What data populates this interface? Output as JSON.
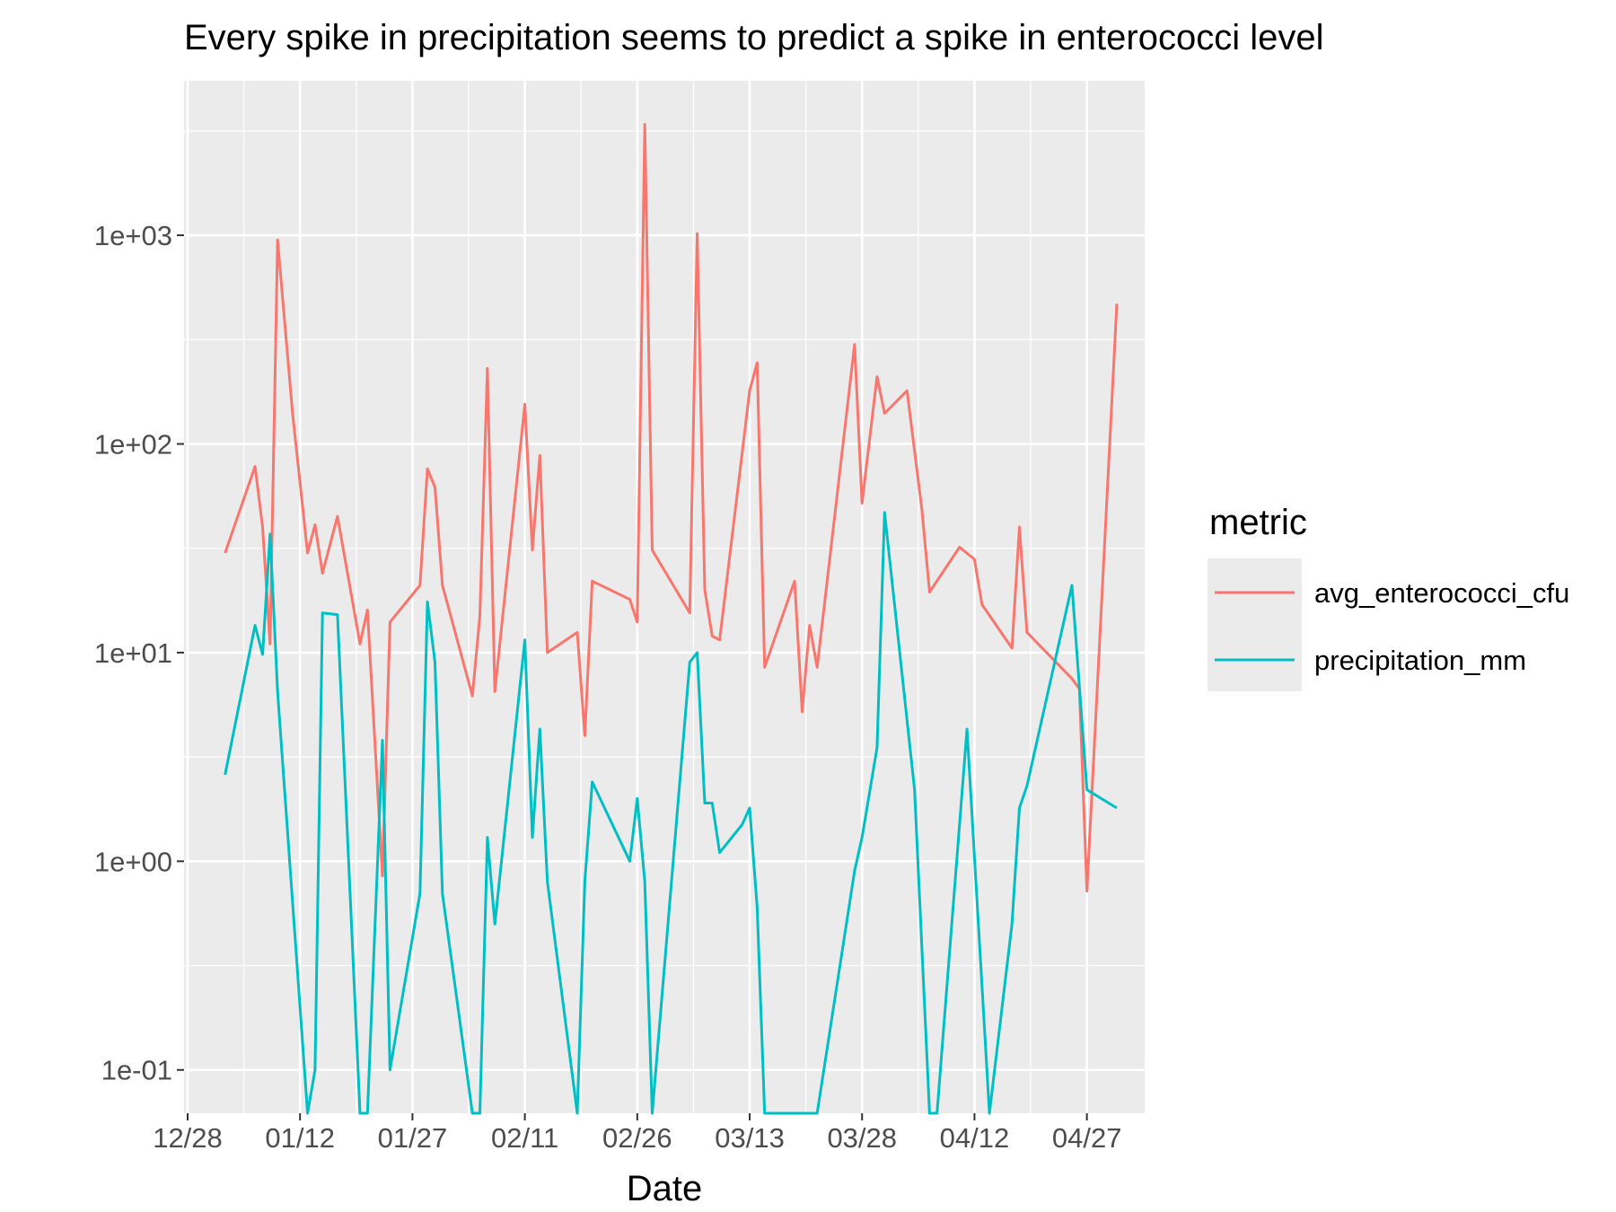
{
  "chart_data": {
    "type": "line",
    "title": "Every spike in precipitation seems to predict a spike in enterococci level",
    "xlabel": "Date",
    "ylabel": "",
    "y_scale": "log10",
    "ylim": [
      0.062,
      5500
    ],
    "x_ticks": [
      "12/28",
      "01/12",
      "01/27",
      "02/11",
      "02/26",
      "03/13",
      "03/28",
      "04/12",
      "04/27"
    ],
    "y_ticks": [
      {
        "value": 0.1,
        "label": "1e-01"
      },
      {
        "value": 1,
        "label": "1e+00"
      },
      {
        "value": 10,
        "label": "1e+01"
      },
      {
        "value": 100,
        "label": "1e+02"
      },
      {
        "value": 1000,
        "label": "1e+03"
      }
    ],
    "legend": {
      "title": "metric",
      "position": "right"
    },
    "grid": true,
    "series": [
      {
        "name": "avg_enterococci_cfu",
        "color": "#F8766D",
        "points": [
          [
            "2024-01-02",
            30
          ],
          [
            "2024-01-06",
            78
          ],
          [
            "2024-01-07",
            40
          ],
          [
            "2024-01-08",
            11
          ],
          [
            "2024-01-09",
            950
          ],
          [
            "2024-01-11",
            140
          ],
          [
            "2024-01-13",
            30
          ],
          [
            "2024-01-14",
            41
          ],
          [
            "2024-01-15",
            24
          ],
          [
            "2024-01-17",
            45
          ],
          [
            "2024-01-20",
            11
          ],
          [
            "2024-01-21",
            16
          ],
          [
            "2024-01-23",
            0.85
          ],
          [
            "2024-01-24",
            14
          ],
          [
            "2024-01-28",
            21
          ],
          [
            "2024-01-29",
            76
          ],
          [
            "2024-01-30",
            62
          ],
          [
            "2024-01-31",
            21
          ],
          [
            "2024-02-04",
            6.2
          ],
          [
            "2024-02-05",
            15
          ],
          [
            "2024-02-06",
            230
          ],
          [
            "2024-02-07",
            6.5
          ],
          [
            "2024-02-11",
            155
          ],
          [
            "2024-02-12",
            31
          ],
          [
            "2024-02-13",
            88
          ],
          [
            "2024-02-14",
            10
          ],
          [
            "2024-02-18",
            12.5
          ],
          [
            "2024-02-19",
            4
          ],
          [
            "2024-02-20",
            22
          ],
          [
            "2024-02-25",
            18
          ],
          [
            "2024-02-26",
            14
          ],
          [
            "2024-02-27",
            3400
          ],
          [
            "2024-02-28",
            31
          ],
          [
            "2024-03-04",
            15.5
          ],
          [
            "2024-03-05",
            1020
          ],
          [
            "2024-03-06",
            20
          ],
          [
            "2024-03-07",
            12
          ],
          [
            "2024-03-08",
            11.5
          ],
          [
            "2024-03-12",
            180
          ],
          [
            "2024-03-13",
            245
          ],
          [
            "2024-03-14",
            8.5
          ],
          [
            "2024-03-18",
            22
          ],
          [
            "2024-03-19",
            5.2
          ],
          [
            "2024-03-20",
            13.5
          ],
          [
            "2024-03-21",
            8.5
          ],
          [
            "2024-03-26",
            300
          ],
          [
            "2024-03-27",
            52
          ],
          [
            "2024-03-29",
            210
          ],
          [
            "2024-03-30",
            140
          ],
          [
            "2024-04-02",
            180
          ],
          [
            "2024-04-04",
            48
          ],
          [
            "2024-04-05",
            19.5
          ],
          [
            "2024-04-09",
            32
          ],
          [
            "2024-04-11",
            28
          ],
          [
            "2024-04-12",
            17
          ],
          [
            "2024-04-16",
            10.5
          ],
          [
            "2024-04-17",
            40
          ],
          [
            "2024-04-18",
            12.5
          ],
          [
            "2024-04-24",
            7.5
          ],
          [
            "2024-04-25",
            6.7
          ],
          [
            "2024-04-26",
            0.72
          ],
          [
            "2024-04-30",
            470
          ]
        ]
      },
      {
        "name": "precipitation_mm",
        "color": "#00BFC4",
        "points": [
          [
            "2024-01-02",
            2.6
          ],
          [
            "2024-01-06",
            13.5
          ],
          [
            "2024-01-07",
            9.8
          ],
          [
            "2024-01-08",
            37
          ],
          [
            "2024-01-09",
            6.5
          ],
          [
            "2024-01-13",
            0.06
          ],
          [
            "2024-01-14",
            0.1
          ],
          [
            "2024-01-15",
            15.5
          ],
          [
            "2024-01-17",
            15.2
          ],
          [
            "2024-01-20",
            0.06
          ],
          [
            "2024-01-21",
            0.06
          ],
          [
            "2024-01-23",
            3.8
          ],
          [
            "2024-01-24",
            0.1
          ],
          [
            "2024-01-28",
            0.7
          ],
          [
            "2024-01-29",
            17.5
          ],
          [
            "2024-01-30",
            9
          ],
          [
            "2024-01-31",
            0.7
          ],
          [
            "2024-02-04",
            0.06
          ],
          [
            "2024-02-05",
            0.06
          ],
          [
            "2024-02-06",
            1.3
          ],
          [
            "2024-02-07",
            0.5
          ],
          [
            "2024-02-11",
            11.5
          ],
          [
            "2024-02-12",
            1.3
          ],
          [
            "2024-02-13",
            4.3
          ],
          [
            "2024-02-14",
            0.8
          ],
          [
            "2024-02-18",
            0.06
          ],
          [
            "2024-02-19",
            0.8
          ],
          [
            "2024-02-20",
            2.4
          ],
          [
            "2024-02-25",
            1
          ],
          [
            "2024-02-26",
            2
          ],
          [
            "2024-02-27",
            0.8
          ],
          [
            "2024-02-28",
            0.06
          ],
          [
            "2024-03-04",
            9
          ],
          [
            "2024-03-05",
            10
          ],
          [
            "2024-03-06",
            1.9
          ],
          [
            "2024-03-07",
            1.9
          ],
          [
            "2024-03-08",
            1.1
          ],
          [
            "2024-03-11",
            1.5
          ],
          [
            "2024-03-12",
            1.8
          ],
          [
            "2024-03-13",
            0.6
          ],
          [
            "2024-03-14",
            0.06
          ],
          [
            "2024-03-21",
            0.06
          ],
          [
            "2024-03-26",
            0.9
          ],
          [
            "2024-03-27",
            1.3
          ],
          [
            "2024-03-29",
            3.5
          ],
          [
            "2024-03-30",
            47
          ],
          [
            "2024-04-03",
            2.2
          ],
          [
            "2024-04-05",
            0.06
          ],
          [
            "2024-04-06",
            0.06
          ],
          [
            "2024-04-10",
            4.3
          ],
          [
            "2024-04-13",
            0.06
          ],
          [
            "2024-04-16",
            0.5
          ],
          [
            "2024-04-17",
            1.8
          ],
          [
            "2024-04-18",
            2.3
          ],
          [
            "2024-04-24",
            21
          ],
          [
            "2024-04-26",
            2.2
          ],
          [
            "2024-04-30",
            1.8
          ]
        ]
      }
    ]
  }
}
